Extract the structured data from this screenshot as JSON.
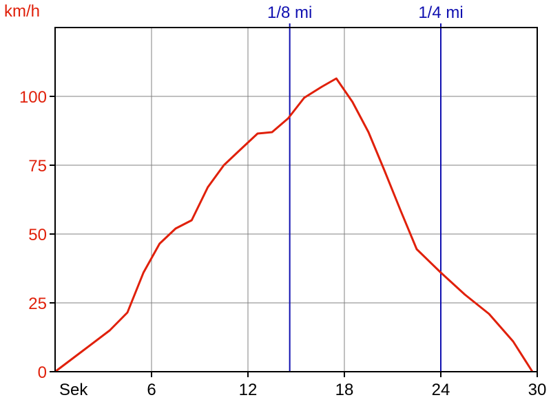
{
  "chart_data": {
    "type": "line",
    "y_unit_label": "km/h",
    "x_unit_label": "Sek",
    "xlim": [
      0,
      30
    ],
    "ylim": [
      0,
      125
    ],
    "grid": true,
    "x_ticks": [
      {
        "value": 6,
        "label": "6"
      },
      {
        "value": 12,
        "label": "12"
      },
      {
        "value": 18,
        "label": "18"
      },
      {
        "value": 24,
        "label": "24"
      },
      {
        "value": 30,
        "label": "30"
      }
    ],
    "y_ticks": [
      {
        "value": 0,
        "label": "0"
      },
      {
        "value": 25,
        "label": "25"
      },
      {
        "value": 50,
        "label": "50"
      },
      {
        "value": 75,
        "label": "75"
      },
      {
        "value": 100,
        "label": "100"
      }
    ],
    "markers": [
      {
        "value": 14.6,
        "label": "1/8 mi"
      },
      {
        "value": 24.0,
        "label": "1/4 mi"
      }
    ],
    "series": [
      {
        "color": "#e0200a",
        "x": [
          0,
          1.7,
          3.4,
          4.5,
          5.5,
          6.5,
          7.5,
          8.5,
          9.5,
          10.5,
          11.5,
          12.6,
          13.5,
          14.5,
          15.5,
          16.6,
          17.5,
          18.5,
          19.5,
          20.5,
          21.5,
          22.5,
          24.0,
          25.5,
          27.0,
          28.5,
          29.7
        ],
        "y": [
          0,
          7.5,
          15,
          21.5,
          36,
          46.5,
          52,
          55,
          67,
          75,
          80.5,
          86.5,
          87,
          92,
          99.5,
          103.5,
          106.5,
          98,
          87,
          73,
          58.5,
          44.5,
          36,
          28,
          21,
          11,
          0
        ]
      }
    ],
    "colors": {
      "axis_labels": "#e0200a",
      "x_labels": "#000000",
      "markers": "#1010b0",
      "grid": "#808080",
      "frame": "#000000"
    }
  }
}
